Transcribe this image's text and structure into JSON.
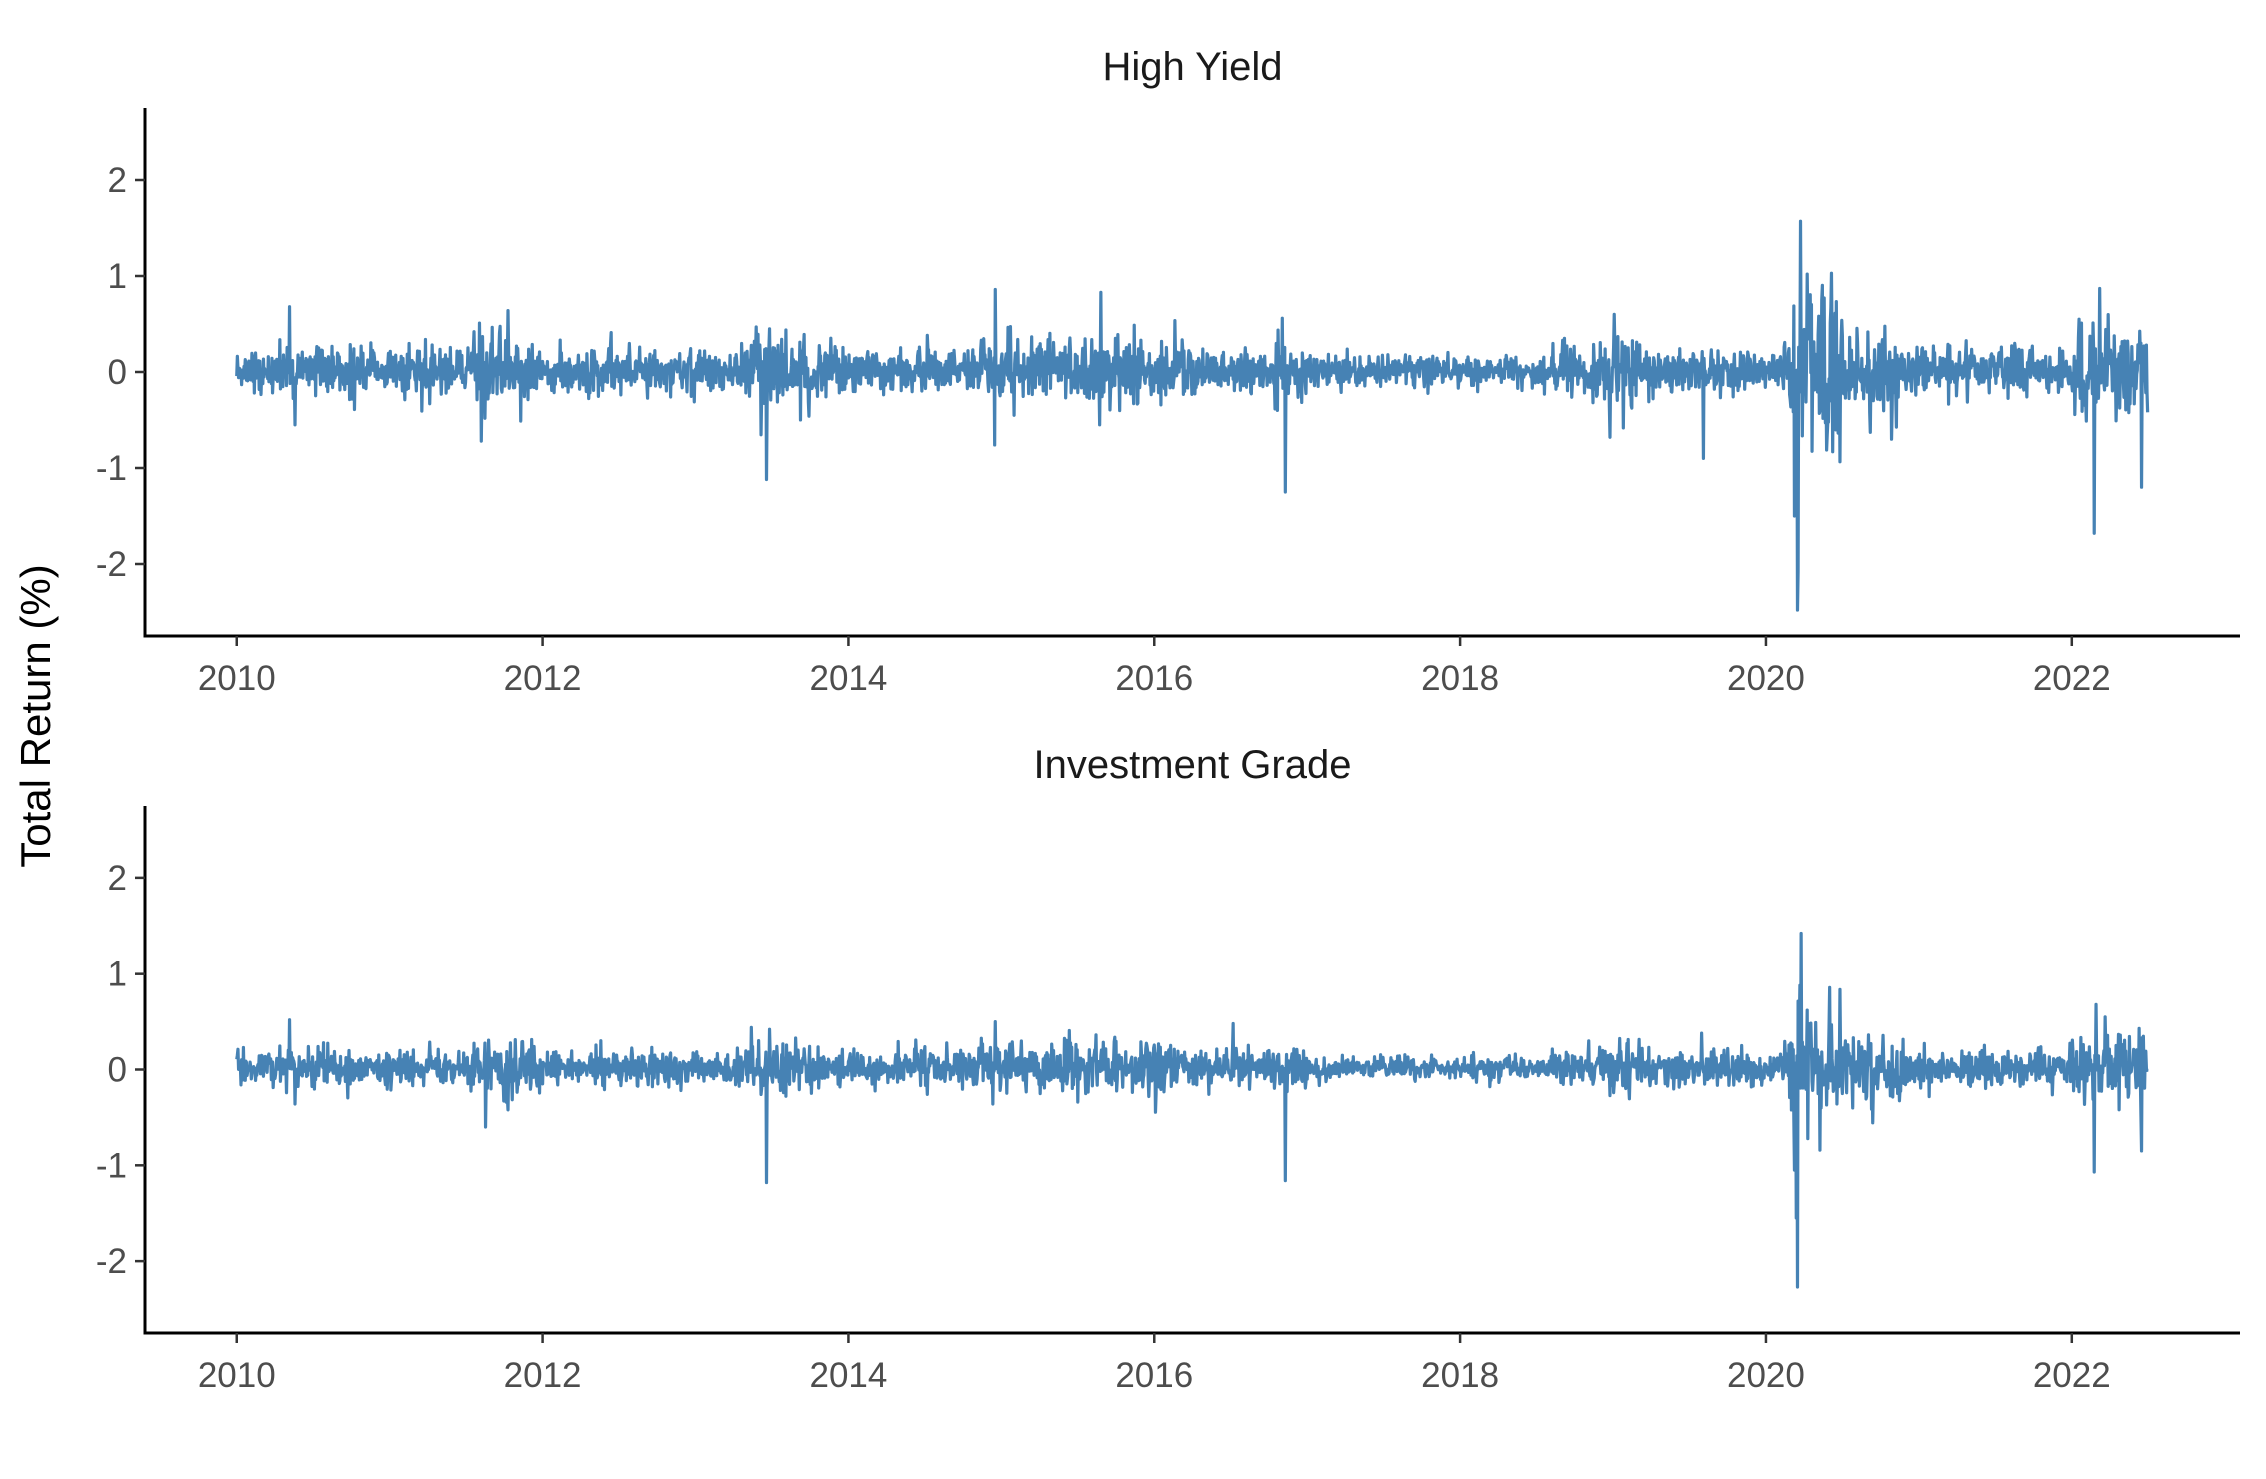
{
  "figure": {
    "ylabel": "Total Return (%)"
  },
  "colors": {
    "series": "#4682B4"
  },
  "chart_data": [
    {
      "type": "line",
      "title": "High Yield",
      "xlabel": "",
      "ylabel": "Total Return (%)",
      "x_range": [
        "2010-01-01",
        "2022-07-01"
      ],
      "xlim": [
        2009.4,
        2023.1
      ],
      "ylim": [
        -2.75,
        2.75
      ],
      "x_ticks": [
        2010,
        2012,
        2014,
        2016,
        2018,
        2020,
        2022
      ],
      "x_tick_labels": [
        "2010",
        "2012",
        "2014",
        "2016",
        "2018",
        "2020",
        "2022"
      ],
      "y_ticks": [
        2,
        1,
        0,
        -1,
        -2
      ],
      "y_tick_labels": [
        "2",
        "1",
        "0",
        "-1",
        "-2"
      ],
      "grid": false,
      "legend": "none",
      "typical_daily_spread": 0.13,
      "notable_points": [
        {
          "date": "2010-05-07",
          "value": 0.68
        },
        {
          "date": "2010-05-20",
          "value": -0.55
        },
        {
          "date": "2011-08-08",
          "value": -0.72
        },
        {
          "date": "2011-10-10",
          "value": 0.64
        },
        {
          "date": "2013-06-20",
          "value": -1.12
        },
        {
          "date": "2013-06-27",
          "value": 0.45
        },
        {
          "date": "2014-12-16",
          "value": -0.76
        },
        {
          "date": "2014-12-18",
          "value": 0.86
        },
        {
          "date": "2015-08-24",
          "value": -0.55
        },
        {
          "date": "2015-08-27",
          "value": 0.83
        },
        {
          "date": "2016-11-09",
          "value": -1.25
        },
        {
          "date": "2016-11-02",
          "value": 0.56
        },
        {
          "date": "2018-12-24",
          "value": -0.68
        },
        {
          "date": "2019-01-04",
          "value": 0.6
        },
        {
          "date": "2019-08-05",
          "value": -0.9
        },
        {
          "date": "2020-03-09",
          "value": -1.5
        },
        {
          "date": "2020-03-16",
          "value": -2.48
        },
        {
          "date": "2020-03-18",
          "value": -2.08
        },
        {
          "date": "2020-03-24",
          "value": 1.57
        },
        {
          "date": "2020-04-09",
          "value": 1.02
        },
        {
          "date": "2020-05-14",
          "value": 0.75
        },
        {
          "date": "2020-10-28",
          "value": -0.7
        },
        {
          "date": "2022-02-24",
          "value": -1.68
        },
        {
          "date": "2022-03-09",
          "value": 0.87
        },
        {
          "date": "2022-06-16",
          "value": -1.2
        }
      ]
    },
    {
      "type": "line",
      "title": "Investment Grade",
      "xlabel": "",
      "ylabel": "Total Return (%)",
      "x_range": [
        "2010-01-01",
        "2022-07-01"
      ],
      "xlim": [
        2009.4,
        2023.1
      ],
      "ylim": [
        -2.75,
        2.75
      ],
      "x_ticks": [
        2010,
        2012,
        2014,
        2016,
        2018,
        2020,
        2022
      ],
      "x_tick_labels": [
        "2010",
        "2012",
        "2014",
        "2016",
        "2018",
        "2020",
        "2022"
      ],
      "y_ticks": [
        2,
        1,
        0,
        -1,
        -2
      ],
      "y_tick_labels": [
        "2",
        "1",
        "0",
        "-1",
        "-2"
      ],
      "grid": false,
      "legend": "none",
      "typical_daily_spread": 0.1,
      "notable_points": [
        {
          "date": "2010-05-07",
          "value": 0.52
        },
        {
          "date": "2010-05-20",
          "value": -0.36
        },
        {
          "date": "2011-08-18",
          "value": -0.6
        },
        {
          "date": "2013-06-20",
          "value": -1.18
        },
        {
          "date": "2013-06-26",
          "value": 0.42
        },
        {
          "date": "2014-12-18",
          "value": 0.5
        },
        {
          "date": "2014-12-12",
          "value": -0.36
        },
        {
          "date": "2016-11-09",
          "value": -1.16
        },
        {
          "date": "2016-07-08",
          "value": 0.48
        },
        {
          "date": "2019-08-01",
          "value": 0.38
        },
        {
          "date": "2020-03-09",
          "value": -1.05
        },
        {
          "date": "2020-03-13",
          "value": -1.55
        },
        {
          "date": "2020-03-17",
          "value": -2.27
        },
        {
          "date": "2020-03-23",
          "value": 0.88
        },
        {
          "date": "2020-03-25",
          "value": 1.42
        },
        {
          "date": "2020-04-09",
          "value": 0.62
        },
        {
          "date": "2020-05-12",
          "value": -0.4
        },
        {
          "date": "2022-02-28",
          "value": 0.68
        },
        {
          "date": "2022-02-24",
          "value": -1.07
        },
        {
          "date": "2022-03-22",
          "value": 0.55
        },
        {
          "date": "2022-06-16",
          "value": -0.85
        }
      ]
    }
  ]
}
